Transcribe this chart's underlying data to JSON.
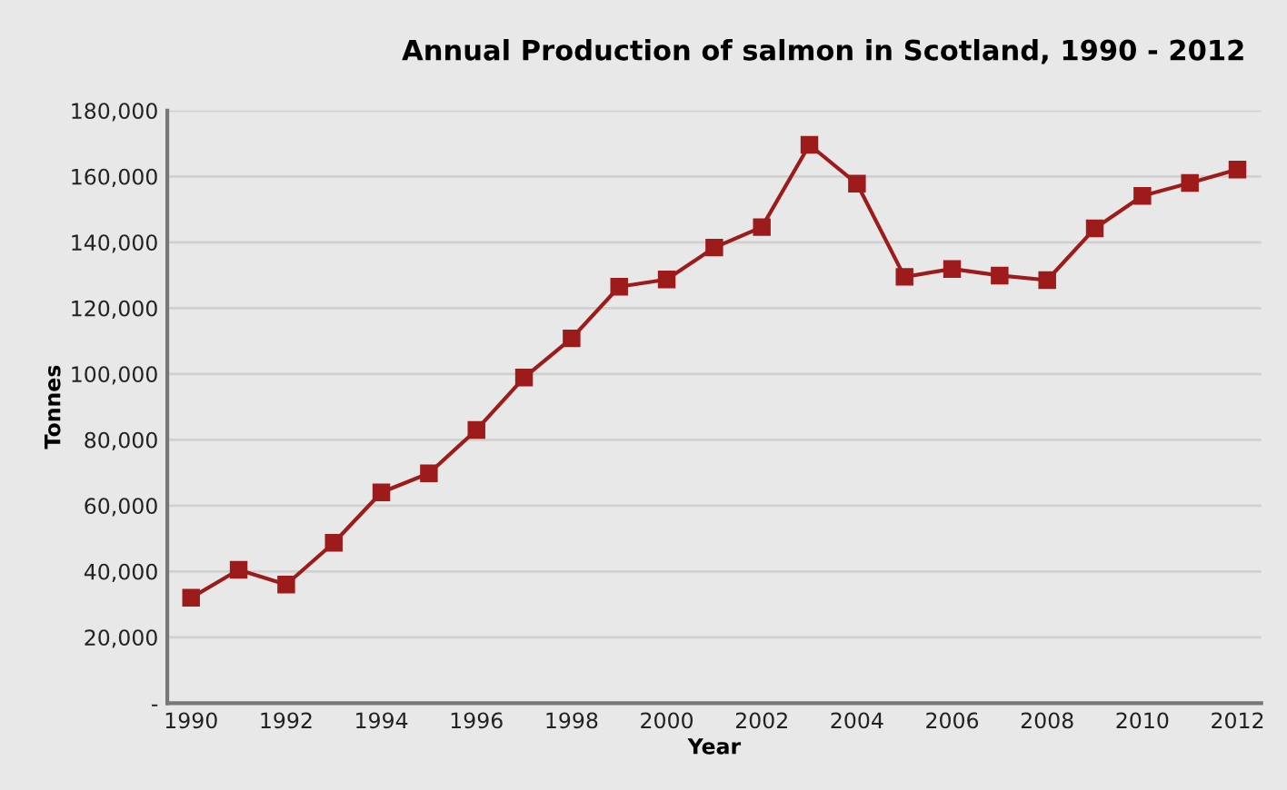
{
  "chart_data": {
    "type": "line",
    "title": "Annual Production of salmon in Scotland, 1990 - 2012",
    "xlabel": "Year",
    "ylabel": "Tonnes",
    "x": [
      1990,
      1991,
      1992,
      1993,
      1994,
      1995,
      1996,
      1997,
      1998,
      1999,
      2000,
      2001,
      2002,
      2003,
      2004,
      2005,
      2006,
      2007,
      2008,
      2009,
      2010,
      2011,
      2012
    ],
    "series": [
      {
        "color": "#9e1b1b",
        "values": [
          32000,
          40500,
          36000,
          48700,
          64000,
          69800,
          83000,
          98900,
          110800,
          126500,
          128700,
          138400,
          144600,
          169600,
          157800,
          129500,
          131900,
          129900,
          128500,
          144200,
          154100,
          158000,
          162100
        ]
      }
    ],
    "xlim": [
      1989.5,
      2012.5
    ],
    "xticks": [
      1990,
      1992,
      1994,
      1996,
      1998,
      2000,
      2002,
      2004,
      2006,
      2008,
      2010,
      2012
    ],
    "ylim": [
      0,
      180000
    ],
    "yticks": [
      {
        "value": 0,
        "label": "-"
      },
      {
        "value": 20000,
        "label": "20,000"
      },
      {
        "value": 40000,
        "label": "40,000"
      },
      {
        "value": 60000,
        "label": "60,000"
      },
      {
        "value": 80000,
        "label": "80,000"
      },
      {
        "value": 100000,
        "label": "100,000"
      },
      {
        "value": 120000,
        "label": "120,000"
      },
      {
        "value": 140000,
        "label": "140,000"
      },
      {
        "value": 160000,
        "label": "160,000"
      },
      {
        "value": 180000,
        "label": "180,000"
      }
    ],
    "grid": "y",
    "marker": "square",
    "line_style": "solid"
  }
}
